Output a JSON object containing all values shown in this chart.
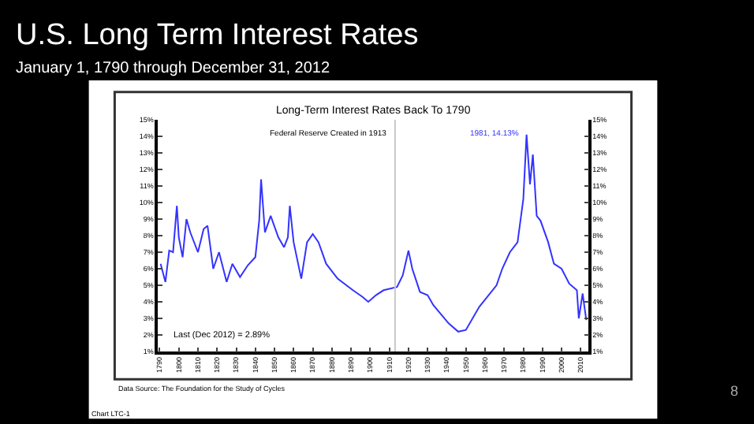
{
  "chart_data": {
    "type": "line",
    "title": "U.S. Long Term Interest Rates",
    "subtitle": "January 1, 1790 through December 31, 2012",
    "x": [
      1790.5,
      1793,
      1795,
      1797,
      1799,
      1800,
      1802,
      1804,
      1806,
      1810,
      1813,
      1815,
      1818,
      1821,
      1825,
      1828,
      1832,
      1836,
      1840,
      1842,
      1843,
      1845,
      1848,
      1852,
      1855,
      1857,
      1858,
      1860,
      1864,
      1867,
      1870,
      1873,
      1877,
      1883,
      1891,
      1896,
      1899,
      1903,
      1907,
      1914,
      1917,
      1920,
      1922,
      1926,
      1930,
      1933,
      1941,
      1946,
      1950,
      1957,
      1966,
      1969,
      1973,
      1977,
      1980,
      1981.7,
      1983.5,
      1985,
      1987,
      1989,
      1993,
      1996,
      2000,
      2004,
      2008,
      2009,
      2011,
      2012.9
    ],
    "series": [
      {
        "color": "#3333ff",
        "values": [
          6.3,
          5.2,
          7.1,
          7.0,
          9.8,
          7.9,
          6.7,
          9.0,
          8.2,
          7.0,
          8.4,
          8.6,
          6.0,
          7.0,
          5.2,
          6.3,
          5.5,
          6.2,
          6.7,
          8.9,
          11.4,
          8.2,
          9.2,
          7.9,
          7.3,
          7.9,
          9.8,
          7.6,
          5.4,
          7.6,
          8.1,
          7.6,
          6.3,
          5.4,
          4.7,
          4.3,
          4.0,
          4.4,
          4.7,
          4.9,
          5.6,
          7.1,
          6.0,
          4.6,
          4.4,
          3.8,
          2.7,
          2.2,
          2.3,
          3.7,
          5.0,
          6.0,
          7.0,
          7.6,
          10.2,
          14.1,
          11.1,
          12.9,
          9.2,
          8.9,
          7.6,
          6.3,
          6.0,
          5.1,
          4.7,
          3.0,
          4.5,
          2.9
        ]
      }
    ],
    "xlim": [
      1789,
      2014
    ],
    "xticks": [
      1790,
      1800,
      1810,
      1820,
      1830,
      1840,
      1850,
      1860,
      1870,
      1880,
      1890,
      1900,
      1910,
      1920,
      1930,
      1940,
      1950,
      1960,
      1970,
      1980,
      1990,
      2000,
      2010
    ],
    "ylim": [
      1,
      15
    ],
    "yticks": [
      {
        "value": 1,
        "label": "1%"
      },
      {
        "value": 2,
        "label": "2%"
      },
      {
        "value": 3,
        "label": "3%"
      },
      {
        "value": 4,
        "label": "4%"
      },
      {
        "value": 5,
        "label": "5%"
      },
      {
        "value": 6,
        "label": "6%"
      },
      {
        "value": 7,
        "label": "7%"
      },
      {
        "value": 8,
        "label": "8%"
      },
      {
        "value": 9,
        "label": "9%"
      },
      {
        "value": 10,
        "label": "10%"
      },
      {
        "value": 11,
        "label": "11%"
      },
      {
        "value": 12,
        "label": "12%"
      },
      {
        "value": 13,
        "label": "13%"
      },
      {
        "value": 14,
        "label": "14%"
      },
      {
        "value": 15,
        "label": "15%"
      }
    ],
    "y2lim": [
      1,
      15
    ],
    "y2ticks": [
      {
        "value": 1,
        "label": "1%"
      },
      {
        "value": 2,
        "label": "2%"
      },
      {
        "value": 3,
        "label": "3%"
      },
      {
        "value": 4,
        "label": "4%"
      },
      {
        "value": 5,
        "label": "5%"
      },
      {
        "value": 6,
        "label": "6%"
      },
      {
        "value": 7,
        "label": "7%"
      },
      {
        "value": 8,
        "label": "8%"
      },
      {
        "value": 9,
        "label": "9%"
      },
      {
        "value": 10,
        "label": "10%"
      },
      {
        "value": 11,
        "label": "11%"
      },
      {
        "value": 12,
        "label": "12%"
      },
      {
        "value": 13,
        "label": "13%"
      },
      {
        "value": 14,
        "label": "14%"
      },
      {
        "value": 15,
        "label": "15%"
      }
    ],
    "ref_lines": [
      {
        "axis": "x",
        "value": 1913,
        "label": "Federal Reserve Created in 1913",
        "color": "#c8c8c8"
      }
    ],
    "annotations": [
      "Long-Term Interest Rates Back To 1790",
      "Last (Dec 2012) = 2.89%",
      "Data Source: The Foundation for the Study of Cycles",
      "Chart LTC-1",
      "8",
      {
        "text": "1981, 14.13%",
        "x": 1981.7,
        "y": 14.13
      }
    ],
    "marker": "none",
    "line_style": "solid"
  }
}
